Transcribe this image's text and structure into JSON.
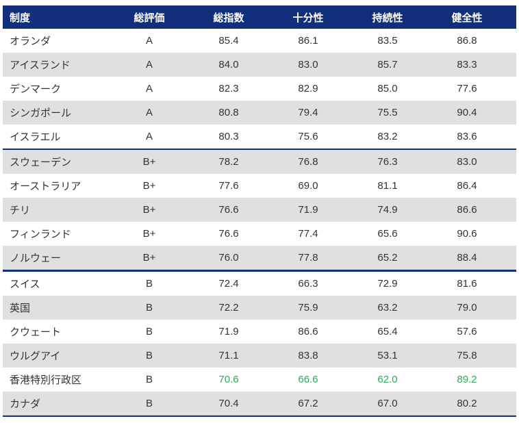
{
  "colors": {
    "header_navy": "#112f7a",
    "stripe_gray": "#e0e0e0",
    "body_text": "#333333",
    "highlight_green": "#2eab5c"
  },
  "table": {
    "columns": [
      {
        "label": "制度"
      },
      {
        "label": "総評価"
      },
      {
        "label": "総指数"
      },
      {
        "label": "十分性"
      },
      {
        "label": "持続性"
      },
      {
        "label": "健全性"
      }
    ],
    "rows": [
      {
        "name": "オランダ",
        "grade": "A",
        "total": "85.4",
        "adequacy": "86.1",
        "sustainability": "83.5",
        "integrity": "86.8",
        "highlight": false
      },
      {
        "name": "アイスランド",
        "grade": "A",
        "total": "84.0",
        "adequacy": "83.0",
        "sustainability": "85.7",
        "integrity": "83.3",
        "highlight": false
      },
      {
        "name": "デンマーク",
        "grade": "A",
        "total": "82.3",
        "adequacy": "82.9",
        "sustainability": "85.0",
        "integrity": "77.6",
        "highlight": false
      },
      {
        "name": "シンガポール",
        "grade": "A",
        "total": "80.8",
        "adequacy": "79.4",
        "sustainability": "75.5",
        "integrity": "90.4",
        "highlight": false
      },
      {
        "name": "イスラエル",
        "grade": "A",
        "total": "80.3",
        "adequacy": "75.6",
        "sustainability": "83.2",
        "integrity": "83.6",
        "highlight": false
      },
      {
        "name": "スウェーデン",
        "grade": "B+",
        "total": "78.2",
        "adequacy": "76.8",
        "sustainability": "76.3",
        "integrity": "83.0",
        "highlight": false
      },
      {
        "name": "オーストラリア",
        "grade": "B+",
        "total": "77.6",
        "adequacy": "69.0",
        "sustainability": "81.1",
        "integrity": "86.4",
        "highlight": false
      },
      {
        "name": "チリ",
        "grade": "B+",
        "total": "76.6",
        "adequacy": "71.9",
        "sustainability": "74.9",
        "integrity": "86.6",
        "highlight": false
      },
      {
        "name": "フィンランド",
        "grade": "B+",
        "total": "76.6",
        "adequacy": "77.4",
        "sustainability": "65.6",
        "integrity": "90.6",
        "highlight": false
      },
      {
        "name": "ノルウェー",
        "grade": "B+",
        "total": "76.0",
        "adequacy": "77.8",
        "sustainability": "65.2",
        "integrity": "88.4",
        "highlight": false
      },
      {
        "name": "スイス",
        "grade": "B",
        "total": "72.4",
        "adequacy": "66.3",
        "sustainability": "72.9",
        "integrity": "81.6",
        "highlight": false
      },
      {
        "name": "英国",
        "grade": "B",
        "total": "72.2",
        "adequacy": "75.9",
        "sustainability": "63.2",
        "integrity": "79.0",
        "highlight": false
      },
      {
        "name": "クウェート",
        "grade": "B",
        "total": "71.9",
        "adequacy": "86.6",
        "sustainability": "65.4",
        "integrity": "57.6",
        "highlight": false
      },
      {
        "name": "ウルグアイ",
        "grade": "B",
        "total": "71.1",
        "adequacy": "83.8",
        "sustainability": "53.1",
        "integrity": "75.8",
        "highlight": false
      },
      {
        "name": "香港特別行政区",
        "grade": "B",
        "total": "70.6",
        "adequacy": "66.6",
        "sustainability": "62.0",
        "integrity": "89.2",
        "highlight": true
      },
      {
        "name": "カナダ",
        "grade": "B",
        "total": "70.4",
        "adequacy": "67.2",
        "sustainability": "67.0",
        "integrity": "80.2",
        "highlight": false
      }
    ],
    "dividers_after": [
      {
        "index": 4,
        "style": "thin"
      },
      {
        "index": 9,
        "style": "thick"
      }
    ]
  },
  "chart_data": {
    "type": "table",
    "title": "",
    "columns": [
      "制度",
      "総評価",
      "総指数",
      "十分性",
      "持続性",
      "健全性"
    ],
    "rows": [
      [
        "オランダ",
        "A",
        85.4,
        86.1,
        83.5,
        86.8
      ],
      [
        "アイスランド",
        "A",
        84.0,
        83.0,
        85.7,
        83.3
      ],
      [
        "デンマーク",
        "A",
        82.3,
        82.9,
        85.0,
        77.6
      ],
      [
        "シンガポール",
        "A",
        80.8,
        79.4,
        75.5,
        90.4
      ],
      [
        "イスラエル",
        "A",
        80.3,
        75.6,
        83.2,
        83.6
      ],
      [
        "スウェーデン",
        "B+",
        78.2,
        76.8,
        76.3,
        83.0
      ],
      [
        "オーストラリア",
        "B+",
        77.6,
        69.0,
        81.1,
        86.4
      ],
      [
        "チリ",
        "B+",
        76.6,
        71.9,
        74.9,
        86.6
      ],
      [
        "フィンランド",
        "B+",
        76.6,
        77.4,
        65.6,
        90.6
      ],
      [
        "ノルウェー",
        "B+",
        76.0,
        77.8,
        65.2,
        88.4
      ],
      [
        "スイス",
        "B",
        72.4,
        66.3,
        72.9,
        81.6
      ],
      [
        "英国",
        "B",
        72.2,
        75.9,
        63.2,
        79.0
      ],
      [
        "クウェート",
        "B",
        71.9,
        86.6,
        65.4,
        57.6
      ],
      [
        "ウルグアイ",
        "B",
        71.1,
        83.8,
        53.1,
        75.8
      ],
      [
        "香港特別行政区",
        "B",
        70.6,
        66.6,
        62.0,
        89.2
      ],
      [
        "カナダ",
        "B",
        70.4,
        67.2,
        67.0,
        80.2
      ]
    ],
    "groups": [
      {
        "grade": "A",
        "row_indices": [
          0,
          1,
          2,
          3,
          4
        ]
      },
      {
        "grade": "B+",
        "row_indices": [
          5,
          6,
          7,
          8,
          9
        ]
      },
      {
        "grade": "B",
        "row_indices": [
          10,
          11,
          12,
          13,
          14,
          15
        ]
      }
    ],
    "annotations": "Row 香港特別行政区: numeric values rendered in green (#2eab5c); grade groups separated by navy horizontal rules",
    "layout": {
      "striped": true,
      "header_background": "#112f7a",
      "stripe_color": "#e0e0e0"
    }
  }
}
